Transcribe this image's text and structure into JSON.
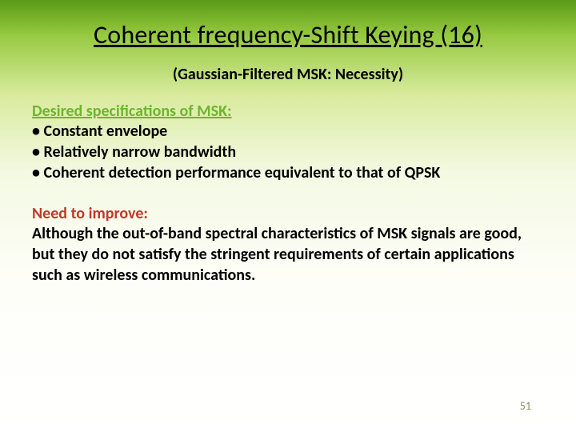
{
  "title": "Coherent frequency-Shift Keying (16)",
  "subtitle": "(Gaussian-Filtered MSK: Necessity)",
  "desired": {
    "heading": "Desired specifications of MSK:",
    "bullets": {
      "b1": "• Constant envelope",
      "b2": "• Relatively narrow bandwidth",
      "b3": "• Coherent detection performance equivalent to that of QPSK"
    }
  },
  "improve": {
    "heading": "Need to improve:",
    "text": "Although the out-of-band spectral characteristics of MSK signals are good, but they do not satisfy the stringent requirements of certain applications such as wireless communications."
  },
  "pageNumber": "51",
  "colors": {
    "gradient_top": "#5a9a14",
    "gradient_mid1": "#95c93f",
    "gradient_mid2": "#d9eb9e",
    "gradient_bottom": "#ffffff",
    "heading_green": "#6eb52f",
    "heading_red": "#c0392b",
    "text": "#000000",
    "pagenum": "#8a8a65"
  },
  "typography": {
    "title_fontsize": 32,
    "subtitle_fontsize": 20,
    "body_fontsize": 20,
    "pagenum_fontsize": 14,
    "font_family": "Calibri"
  }
}
